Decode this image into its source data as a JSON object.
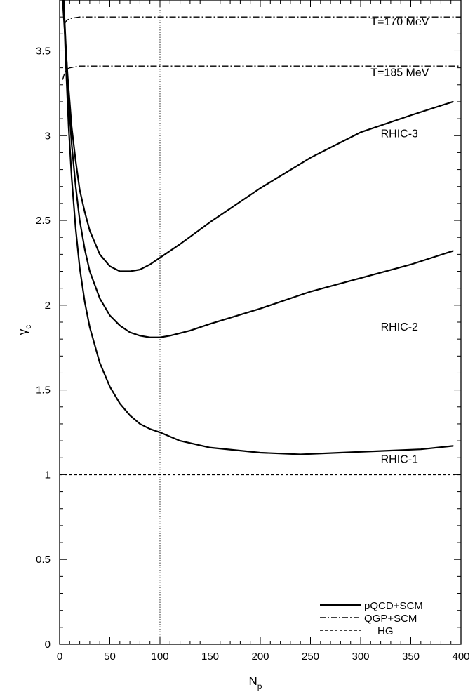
{
  "chart_data": {
    "type": "line",
    "xlabel": "N",
    "xlabel_sub": "p",
    "ylabel": "γ",
    "ylabel_sub": "c",
    "xlim": [
      0,
      400
    ],
    "ylim": [
      0,
      3.8
    ],
    "xticks": [
      0,
      50,
      100,
      150,
      200,
      250,
      300,
      350,
      400
    ],
    "yticks": [
      0,
      0.5,
      1,
      1.5,
      2,
      2.5,
      3,
      3.5
    ],
    "xtick_labels": [
      "0",
      "50",
      "100",
      "150",
      "200",
      "250",
      "300",
      "350",
      "400"
    ],
    "ytick_labels": [
      "0",
      "0.5",
      "1",
      "1.5",
      "2",
      "2.5",
      "3",
      "3.5"
    ],
    "x_minor_step": 10,
    "y_minor_step": 0.1,
    "vertical_reference_x": 100,
    "legend": {
      "position": "bottom-right",
      "entries": [
        {
          "label": "pQCD+SCM",
          "style": "solid"
        },
        {
          "label": "QGP+SCM",
          "style": "dashdot"
        },
        {
          "label": "HG",
          "style": "dashed"
        }
      ]
    },
    "series": [
      {
        "label": "RHIC-3",
        "style": "solid",
        "x": [
          3,
          5,
          8,
          12,
          16,
          20,
          25,
          30,
          40,
          50,
          60,
          65,
          70,
          80,
          90,
          100,
          120,
          150,
          200,
          250,
          300,
          350,
          392
        ],
        "y": [
          3.8,
          3.62,
          3.35,
          3.05,
          2.85,
          2.68,
          2.55,
          2.44,
          2.3,
          2.23,
          2.2,
          2.2,
          2.2,
          2.21,
          2.24,
          2.28,
          2.36,
          2.49,
          2.69,
          2.87,
          3.02,
          3.12,
          3.2
        ]
      },
      {
        "label": "RHIC-2",
        "style": "solid",
        "x": [
          4,
          6,
          9,
          12,
          16,
          20,
          25,
          30,
          40,
          50,
          60,
          70,
          80,
          90,
          100,
          110,
          130,
          150,
          200,
          250,
          300,
          350,
          392
        ],
        "y": [
          3.8,
          3.55,
          3.2,
          2.95,
          2.7,
          2.5,
          2.33,
          2.2,
          2.04,
          1.94,
          1.88,
          1.84,
          1.82,
          1.81,
          1.81,
          1.82,
          1.85,
          1.89,
          1.98,
          2.08,
          2.16,
          2.24,
          2.32
        ]
      },
      {
        "label": "RHIC-1",
        "style": "solid",
        "x": [
          4,
          6,
          9,
          12,
          16,
          20,
          25,
          30,
          40,
          50,
          60,
          70,
          80,
          90,
          100,
          120,
          150,
          200,
          240,
          280,
          320,
          360,
          392
        ],
        "y": [
          3.8,
          3.45,
          3.05,
          2.75,
          2.45,
          2.22,
          2.02,
          1.87,
          1.66,
          1.52,
          1.42,
          1.35,
          1.3,
          1.27,
          1.25,
          1.2,
          1.16,
          1.13,
          1.12,
          1.13,
          1.14,
          1.15,
          1.17
        ]
      },
      {
        "label": "T=170 MeV",
        "style": "dashdot",
        "x": [
          5,
          7,
          10,
          15,
          20,
          30,
          50,
          100,
          200,
          300,
          400
        ],
        "y": [
          3.66,
          3.68,
          3.69,
          3.695,
          3.7,
          3.7,
          3.7,
          3.7,
          3.7,
          3.7,
          3.7
        ]
      },
      {
        "label": "T=185 MeV",
        "style": "dashdot",
        "x": [
          3,
          5,
          7,
          10,
          15,
          20,
          30,
          50,
          100,
          200,
          300,
          400
        ],
        "y": [
          3.33,
          3.37,
          3.39,
          3.4,
          3.405,
          3.41,
          3.41,
          3.41,
          3.41,
          3.41,
          3.41,
          3.41
        ]
      },
      {
        "label": "",
        "style": "dashed",
        "x": [
          0,
          400
        ],
        "y": [
          1,
          1
        ]
      }
    ],
    "annotations": [
      {
        "text": "T=170 MeV",
        "x": 310,
        "y": 3.65
      },
      {
        "text": "T=185 MeV",
        "x": 310,
        "y": 3.35
      },
      {
        "text": "RHIC-3",
        "x": 320,
        "y": 2.99
      },
      {
        "text": "RHIC-2",
        "x": 320,
        "y": 1.85
      },
      {
        "text": "RHIC-1",
        "x": 320,
        "y": 1.07
      }
    ]
  }
}
